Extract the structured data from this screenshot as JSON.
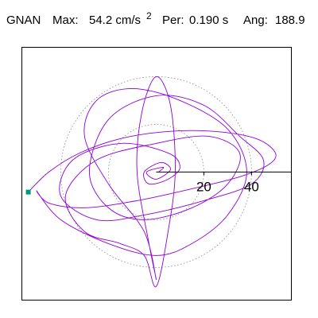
{
  "header": {
    "station": "GNAN",
    "max_label": "Max:",
    "max_value": "54.2 cm/s",
    "max_exp": "2",
    "period_label": "Per:",
    "period_value": "0.190 s",
    "angle_label": "Ang:",
    "angle_value": "188.9"
  },
  "chart_data": {
    "type": "orbit",
    "xlim": [
      -56.3,
      56.7
    ],
    "ylim": [
      -53.7,
      52.3
    ],
    "xticks": [
      20,
      40
    ],
    "grid": true,
    "color": "#8e00d6",
    "x": [
      -53.6,
      -45,
      -32,
      -15,
      5,
      25,
      42,
      50,
      47,
      35,
      15,
      -8,
      -30,
      -45,
      -50,
      -40,
      -20,
      0,
      15,
      30,
      38,
      30,
      10,
      -10,
      -25,
      -30,
      -20,
      -5,
      0,
      -3,
      -8,
      -6,
      0,
      6,
      8,
      5,
      0,
      -5,
      -15,
      -30,
      -38,
      -25,
      0,
      22,
      35,
      30,
      15,
      -5,
      -20,
      -28,
      -20,
      0,
      20,
      35,
      45,
      40,
      20,
      -5,
      -25,
      -40,
      -35,
      -15,
      5,
      10,
      5,
      -3,
      -5,
      2,
      6,
      0,
      -4,
      3,
      1
    ],
    "y": [
      -8.4,
      0,
      8,
      14,
      17,
      17,
      14,
      8,
      3,
      -2,
      -7,
      -12,
      -15,
      -13,
      -8,
      -20,
      -30,
      -35,
      -30,
      -18,
      0,
      18,
      30,
      35,
      30,
      15,
      -5,
      -25,
      -45,
      -30,
      0,
      25,
      40,
      28,
      0,
      -25,
      -48,
      -35,
      -30,
      -25,
      -10,
      5,
      12,
      15,
      8,
      -5,
      -15,
      -20,
      -15,
      0,
      22,
      32,
      28,
      15,
      5,
      -5,
      -12,
      -18,
      -20,
      -10,
      5,
      12,
      8,
      2,
      -3,
      -5,
      0,
      4,
      1,
      -3,
      0,
      2,
      0
    ],
    "marker": {
      "x": -53.6,
      "y": -8.4,
      "color": "#009977"
    }
  }
}
